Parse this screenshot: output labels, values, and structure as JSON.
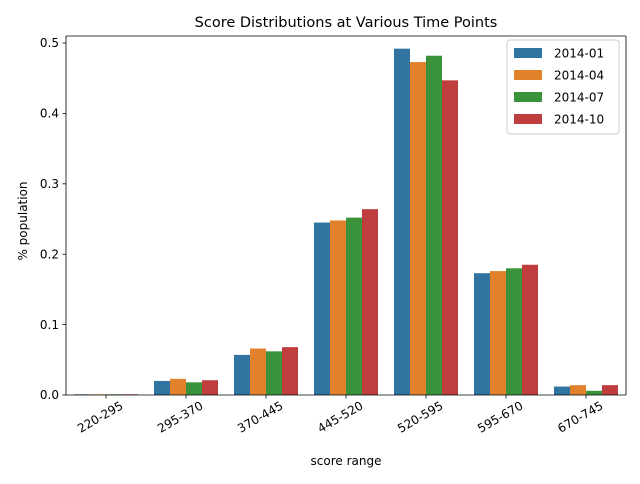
{
  "chart_data": {
    "type": "bar",
    "title": "Score Distributions at Various Time Points",
    "xlabel": "score range",
    "ylabel": "% population",
    "categories": [
      "220-295",
      "295-370",
      "370-445",
      "445-520",
      "520-595",
      "595-670",
      "670-745"
    ],
    "series": [
      {
        "name": "2014-01",
        "color": "#3274a1",
        "values": [
          0.001,
          0.02,
          0.057,
          0.245,
          0.492,
          0.173,
          0.012
        ]
      },
      {
        "name": "2014-04",
        "color": "#e1812c",
        "values": [
          0.001,
          0.023,
          0.066,
          0.248,
          0.473,
          0.176,
          0.014
        ]
      },
      {
        "name": "2014-07",
        "color": "#3a923a",
        "values": [
          0.001,
          0.018,
          0.062,
          0.252,
          0.482,
          0.18,
          0.006
        ]
      },
      {
        "name": "2014-10",
        "color": "#c03d3e",
        "values": [
          0.001,
          0.021,
          0.068,
          0.264,
          0.447,
          0.185,
          0.014
        ]
      }
    ],
    "ylim": [
      0,
      0.51
    ],
    "yticks": [
      0.0,
      0.1,
      0.2,
      0.3,
      0.4,
      0.5
    ],
    "ytick_labels": [
      "0.0",
      "0.1",
      "0.2",
      "0.3",
      "0.4",
      "0.5"
    ],
    "grid": false,
    "legend": "top-right"
  }
}
